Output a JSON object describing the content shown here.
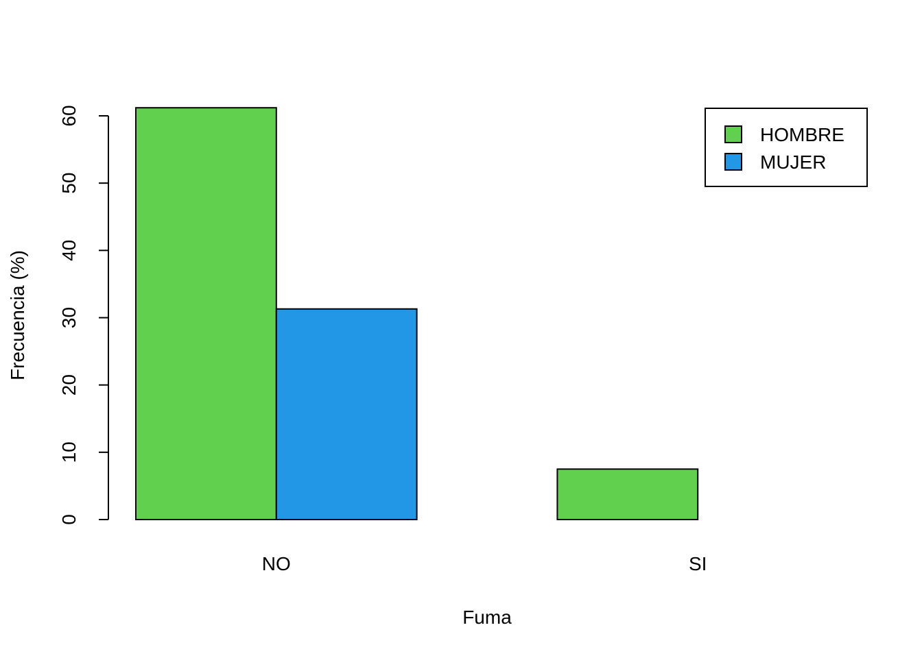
{
  "chart_data": {
    "type": "bar",
    "mode": "grouped",
    "categories": [
      "NO",
      "SI"
    ],
    "series": [
      {
        "name": "HOMBRE",
        "values": [
          61.2,
          7.5
        ],
        "color": "#61D04F"
      },
      {
        "name": "MUJER",
        "values": [
          31.3,
          0.0
        ],
        "color": "#2297E6"
      }
    ],
    "title": "",
    "xlabel": "Fuma",
    "ylabel": "Frecuencia (%)",
    "ylim": [
      0,
      62
    ],
    "yticks": [
      0,
      10,
      20,
      30,
      40,
      50,
      60
    ],
    "grid": false,
    "legend": {
      "position": "top-right",
      "entries": [
        "HOMBRE",
        "MUJER"
      ]
    }
  }
}
